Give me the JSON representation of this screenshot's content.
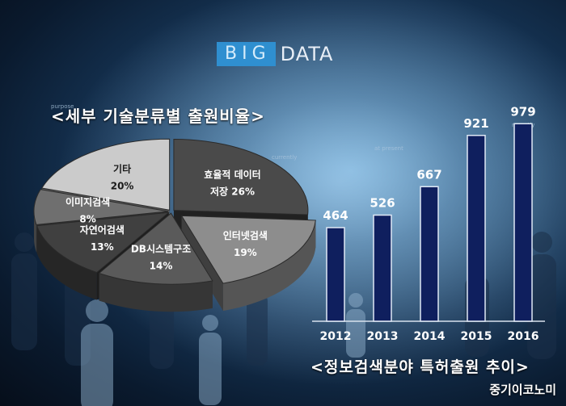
{
  "logo": {
    "big": "BIG",
    "data": "DATA"
  },
  "decor": {
    "purpose": "purpose",
    "currently": "currently",
    "at_present": "at present",
    "recently": "recently"
  },
  "chart_data": [
    {
      "type": "pie",
      "title": "<세부 기술분류별 출원비율>",
      "slices": [
        {
          "label": "효율적 데이터 저장",
          "line1": "효율적 데이터",
          "line2": "저장",
          "value": 26,
          "value_label": "26%",
          "color": "#4a4a4a"
        },
        {
          "label": "인터넷검색",
          "value": 19,
          "value_label": "19%",
          "color": "#8d8d8d",
          "exploded": true
        },
        {
          "label": "DB시스템구조",
          "value": 14,
          "value_label": "14%",
          "color": "#5a5a5a"
        },
        {
          "label": "자연어검색",
          "value": 13,
          "value_label": "13%",
          "color": "#404040"
        },
        {
          "label": "이미지검색",
          "value": 8,
          "value_label": "8%",
          "color": "#6f6f6f"
        },
        {
          "label": "기타",
          "value": 20,
          "value_label": "20%",
          "color": "#cbcbcb"
        }
      ]
    },
    {
      "type": "bar",
      "title": "<정보검색분야 특허출원 추이>",
      "categories": [
        "2012",
        "2013",
        "2014",
        "2015",
        "2016"
      ],
      "values": [
        464,
        526,
        667,
        921,
        979
      ],
      "ylim": [
        0,
        1200
      ],
      "bar_color": "#0f1f5e"
    }
  ],
  "source": "중기이코노미"
}
